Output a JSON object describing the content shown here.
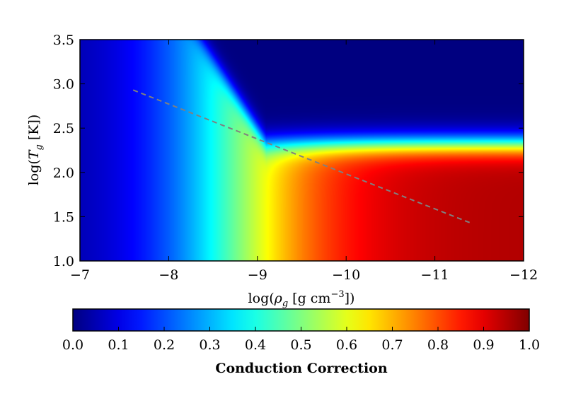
{
  "chart_data": {
    "type": "heatmap",
    "title": "",
    "xlabel": "log(ρg [g cm⁻³])",
    "xlabel_parts": {
      "prefix": "log(",
      "symbol": "ρ",
      "sub": "g",
      "unit": " [g cm",
      "sup": "−3",
      "suffix": "])"
    },
    "ylabel": "log(Tg [K])",
    "ylabel_parts": {
      "prefix": "log(",
      "symbol": "T",
      "sub": "g",
      "suffix": " [K])"
    },
    "xlim": [
      -7,
      -12
    ],
    "ylim": [
      1.0,
      3.5
    ],
    "x_ticks": [
      -7,
      -8,
      -9,
      -10,
      -11,
      -12
    ],
    "x_tick_labels": [
      "−7",
      "−8",
      "−9",
      "−10",
      "−11",
      "−12"
    ],
    "y_ticks": [
      1.0,
      1.5,
      2.0,
      2.5,
      3.0,
      3.5
    ],
    "y_tick_labels": [
      "1.0",
      "1.5",
      "2.0",
      "2.5",
      "3.0",
      "3.5"
    ],
    "colormap": "jet",
    "colorbar": {
      "label": "Conduction Correction",
      "range": [
        0.0,
        1.0
      ],
      "ticks": [
        0.0,
        0.1,
        0.2,
        0.3,
        0.4,
        0.5,
        0.6,
        0.7,
        0.8,
        0.9,
        1.0
      ],
      "tick_labels": [
        "0.0",
        "0.1",
        "0.2",
        "0.3",
        "0.4",
        "0.5",
        "0.6",
        "0.7",
        "0.8",
        "0.9",
        "1.0"
      ],
      "orientation": "horizontal",
      "placement": "below"
    },
    "field_description_points": [
      {
        "log_rho": -8.0,
        "log_T": 1.0,
        "value": 0.15
      },
      {
        "log_rho": -9.0,
        "log_T": 1.0,
        "value": 0.75
      },
      {
        "log_rho": -10.0,
        "log_T": 1.0,
        "value": 0.95
      },
      {
        "log_rho": -11.0,
        "log_T": 1.5,
        "value": 1.0
      },
      {
        "log_rho": -11.0,
        "log_T": 2.3,
        "value": 0.4
      },
      {
        "log_rho": -11.0,
        "log_T": 3.0,
        "value": 0.0
      }
    ],
    "overlay_line": {
      "style": "dashed",
      "color": "#808080",
      "points": [
        [
          -7.6,
          2.93
        ],
        [
          -11.4,
          1.43
        ]
      ]
    }
  }
}
